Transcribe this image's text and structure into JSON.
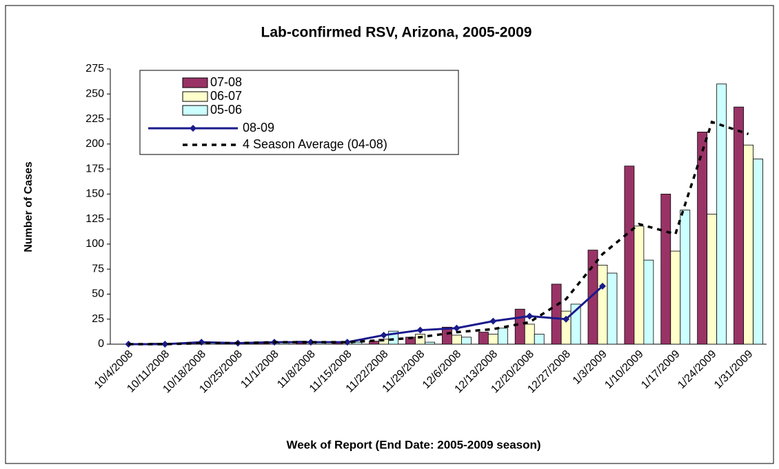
{
  "chart_data": {
    "type": "bar",
    "title": "Lab-confirmed RSV, Arizona, 2005-2009",
    "y_label": "Number of Cases",
    "x_label": "Week of Report (End Date: 2005-2009 season)",
    "categories": [
      "10/4/2008",
      "10/11/2008",
      "10/18/2008",
      "10/25/2008",
      "11/1/2008",
      "11/8/2008",
      "11/15/2008",
      "11/22/2008",
      "11/29/2008",
      "12/6/2008",
      "12/13/2008",
      "12/20/2008",
      "12/27/2008",
      "1/3/2009",
      "1/10/2009",
      "1/17/2009",
      "1/24/2009",
      "1/31/2009"
    ],
    "series": [
      {
        "name": "07-08",
        "type": "bar",
        "color": "#993366",
        "values": [
          0,
          1,
          1,
          1,
          2,
          3,
          2,
          3,
          7,
          17,
          12,
          35,
          60,
          94,
          178,
          150,
          212,
          237
        ]
      },
      {
        "name": "06-07",
        "type": "bar",
        "color": "#ffffcc",
        "values": [
          0,
          1,
          1,
          1,
          1,
          2,
          2,
          5,
          10,
          9,
          10,
          20,
          33,
          79,
          118,
          93,
          130,
          199
        ]
      },
      {
        "name": "05-06",
        "type": "bar",
        "color": "#ccffff",
        "values": [
          0,
          1,
          1,
          1,
          2,
          2,
          2,
          13,
          2,
          7,
          16,
          10,
          40,
          71,
          84,
          134,
          260,
          185
        ]
      },
      {
        "name": "08-09",
        "type": "line",
        "color": "#1a1a8c",
        "marker": "diamond",
        "values": [
          0,
          0,
          2,
          1,
          2,
          2,
          2,
          9,
          14,
          16,
          23,
          28,
          25,
          58,
          null,
          null,
          null,
          null
        ]
      },
      {
        "name": "4 Season Average (04-08)",
        "type": "line",
        "color": "#000000",
        "dashed": true,
        "values": [
          0,
          0,
          1,
          1,
          2,
          2,
          2,
          4,
          7,
          12,
          15,
          22,
          45,
          90,
          120,
          110,
          222,
          210
        ]
      }
    ],
    "ylim": [
      0,
      275
    ],
    "yticks": [
      0,
      25,
      50,
      75,
      100,
      125,
      150,
      175,
      200,
      225,
      250,
      275
    ]
  }
}
